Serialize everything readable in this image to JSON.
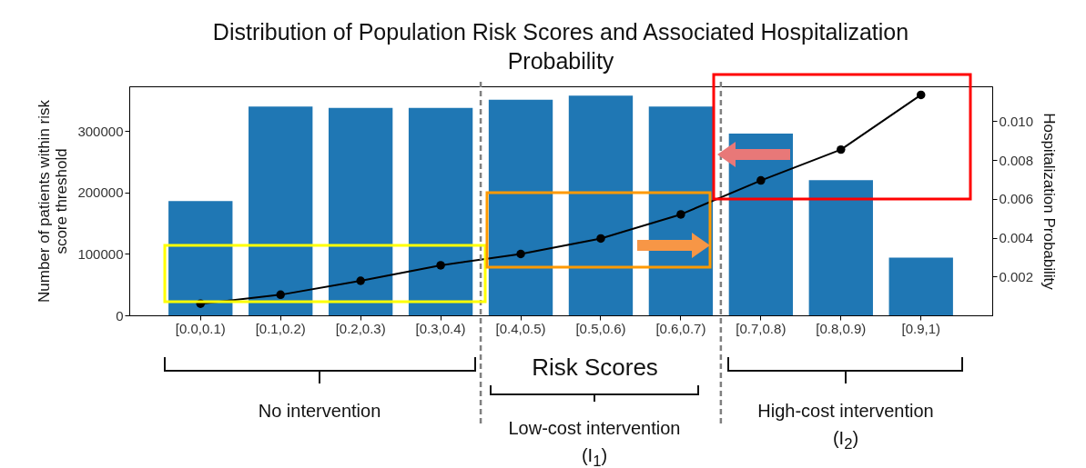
{
  "chart_data": {
    "type": "bar",
    "title": "Distribution of Population Risk Scores and Associated Hospitalization Probability",
    "xlabel": "Risk Scores",
    "ylabel": "Number of patients within risk score threshold",
    "y2label": "Hospitalization Probability",
    "categories": [
      "[0.0,0.1)",
      "[0.1,0.2)",
      "[0.2,0.3)",
      "[0.3,0.4)",
      "[0.4,0.5)",
      "[0.5,0.6)",
      "[0.6,0.7)",
      "[0.7,0.8)",
      "[0.8,0.9)",
      "[0.9,1)"
    ],
    "series": [
      {
        "color": "#1f77b4",
        "values": [
          186000,
          340000,
          338000,
          338000,
          351000,
          358000,
          340000,
          296000,
          220000,
          94000
        ]
      },
      {
        "type": "line",
        "axis": "y2",
        "color": "#000000",
        "values": [
          0.0006,
          0.00106,
          0.00178,
          0.00258,
          0.00316,
          0.00396,
          0.0052,
          0.00695,
          0.00854,
          0.01136
        ]
      }
    ],
    "marker": "circle",
    "line_style": "solid",
    "ylim": [
      0,
      373000
    ],
    "yticks": [
      0,
      100000,
      200000,
      300000
    ],
    "y2lim": [
      0,
      0.0118
    ],
    "y2ticks": [
      0.002,
      0.004,
      0.006,
      0.008,
      {
        "value": 0.01,
        "label": "0.010"
      }
    ],
    "annotations": [
      "No intervention",
      "Low-cost intervention\n(I$_{1}$)",
      "High-cost intervention\n(I$_{2}$)"
    ]
  }
}
